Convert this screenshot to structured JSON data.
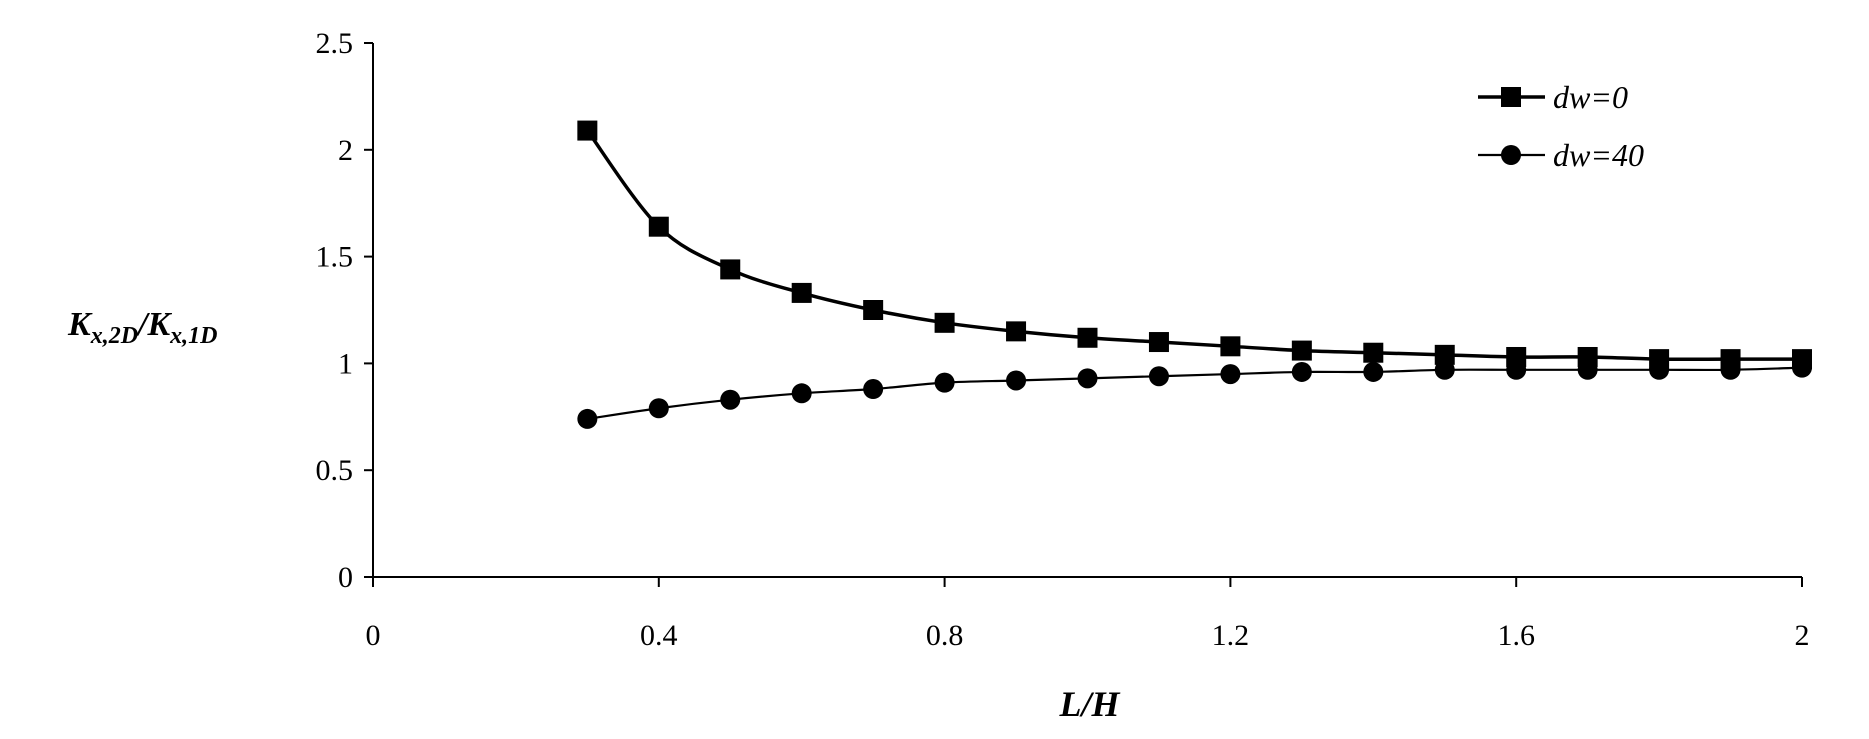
{
  "chart_data": {
    "type": "line",
    "title": "",
    "xlabel": "L/H",
    "ylabel": {
      "main": "K",
      "num_sub": "x,2D",
      "slash": "/",
      "den_main": "K",
      "den_sub": "x,1D"
    },
    "xlim": [
      0,
      2
    ],
    "ylim": [
      0,
      2.5
    ],
    "xticks": [
      0,
      0.4,
      0.8,
      1.2,
      1.6,
      2
    ],
    "xtick_labels": [
      "0",
      "0.4",
      "0.8",
      "1.2",
      "1.6",
      "2"
    ],
    "yticks": [
      0,
      0.5,
      1,
      1.5,
      2,
      2.5
    ],
    "ytick_labels": [
      "0",
      "0.5",
      "1",
      "1.5",
      "2",
      "2.5"
    ],
    "grid": false,
    "legend_position": "top-right",
    "x": [
      0.3,
      0.4,
      0.5,
      0.6,
      0.7,
      0.8,
      0.9,
      1.0,
      1.1,
      1.2,
      1.3,
      1.4,
      1.5,
      1.6,
      1.7,
      1.8,
      1.9,
      2.0
    ],
    "series": [
      {
        "name": "dw=0",
        "marker": "square",
        "color": "#000000",
        "values": [
          2.09,
          1.64,
          1.44,
          1.33,
          1.25,
          1.19,
          1.15,
          1.12,
          1.1,
          1.08,
          1.06,
          1.05,
          1.04,
          1.03,
          1.03,
          1.02,
          1.02,
          1.02
        ]
      },
      {
        "name": "dw=40",
        "marker": "circle",
        "color": "#000000",
        "values": [
          0.74,
          0.79,
          0.83,
          0.86,
          0.88,
          0.91,
          0.92,
          0.93,
          0.94,
          0.95,
          0.96,
          0.96,
          0.97,
          0.97,
          0.97,
          0.97,
          0.97,
          0.98
        ]
      }
    ]
  }
}
